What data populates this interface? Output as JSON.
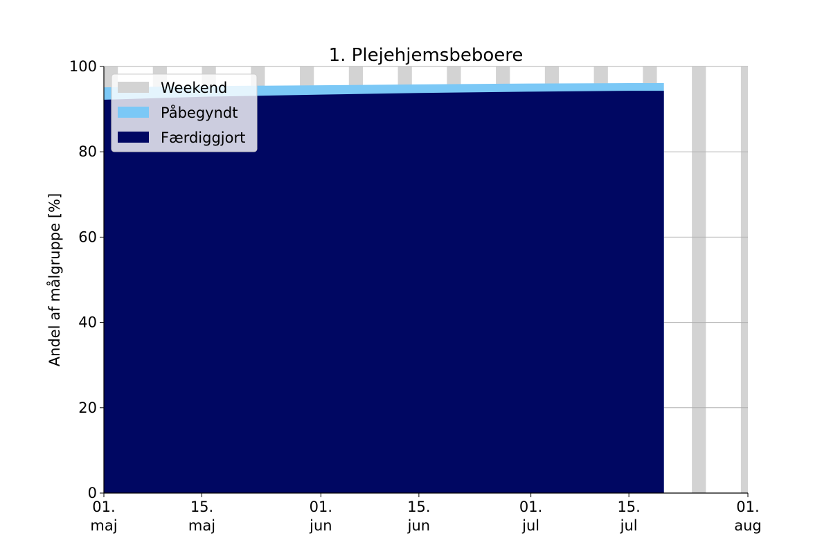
{
  "chart_data": {
    "type": "area",
    "title": "1. Plejehjemsbeboere",
    "xlabel": "",
    "ylabel": "Andel af målgruppe [%]",
    "xlim": [
      "2021-05-01",
      "2021-08-01"
    ],
    "ylim": [
      0,
      100
    ],
    "yticks": [
      0,
      20,
      40,
      60,
      80,
      100
    ],
    "ytick_labels": [
      "0",
      "20",
      "40",
      "60",
      "80",
      "100"
    ],
    "xticks": [
      {
        "date": "2021-05-01",
        "line1": "01.",
        "line2": "maj"
      },
      {
        "date": "2021-05-15",
        "line1": "15.",
        "line2": "maj"
      },
      {
        "date": "2021-06-01",
        "line1": "01.",
        "line2": "jun"
      },
      {
        "date": "2021-06-15",
        "line1": "15.",
        "line2": "jun"
      },
      {
        "date": "2021-07-01",
        "line1": "01.",
        "line2": "jul"
      },
      {
        "date": "2021-07-15",
        "line1": "15.",
        "line2": "jul"
      },
      {
        "date": "2021-08-01",
        "line1": "01.",
        "line2": "aug"
      }
    ],
    "grid": "horizontal",
    "legend_position": "upper-left",
    "weekends": [
      "2021-05-01",
      "2021-05-08",
      "2021-05-15",
      "2021-05-22",
      "2021-05-29",
      "2021-06-05",
      "2021-06-12",
      "2021-06-19",
      "2021-06-26",
      "2021-07-03",
      "2021-07-10",
      "2021-07-17",
      "2021-07-24",
      "2021-07-31"
    ],
    "x": [
      "2021-05-01",
      "2021-05-15",
      "2021-06-01",
      "2021-06-15",
      "2021-07-01",
      "2021-07-15",
      "2021-07-20"
    ],
    "series": [
      {
        "name": "Færdiggjort",
        "color": "#000762",
        "values": [
          92.2,
          92.9,
          93.4,
          93.8,
          94.1,
          94.3,
          94.3
        ]
      },
      {
        "name": "Påbegyndt",
        "color": "#7bc8f6",
        "values": [
          95.1,
          95.4,
          95.6,
          95.8,
          96.0,
          96.1,
          96.1
        ]
      }
    ],
    "legend": [
      {
        "label": "Weekend",
        "color": "#d3d3d3"
      },
      {
        "label": "Påbegyndt",
        "color": "#7bc8f6"
      },
      {
        "label": "Færdiggjort",
        "color": "#000762"
      }
    ]
  }
}
